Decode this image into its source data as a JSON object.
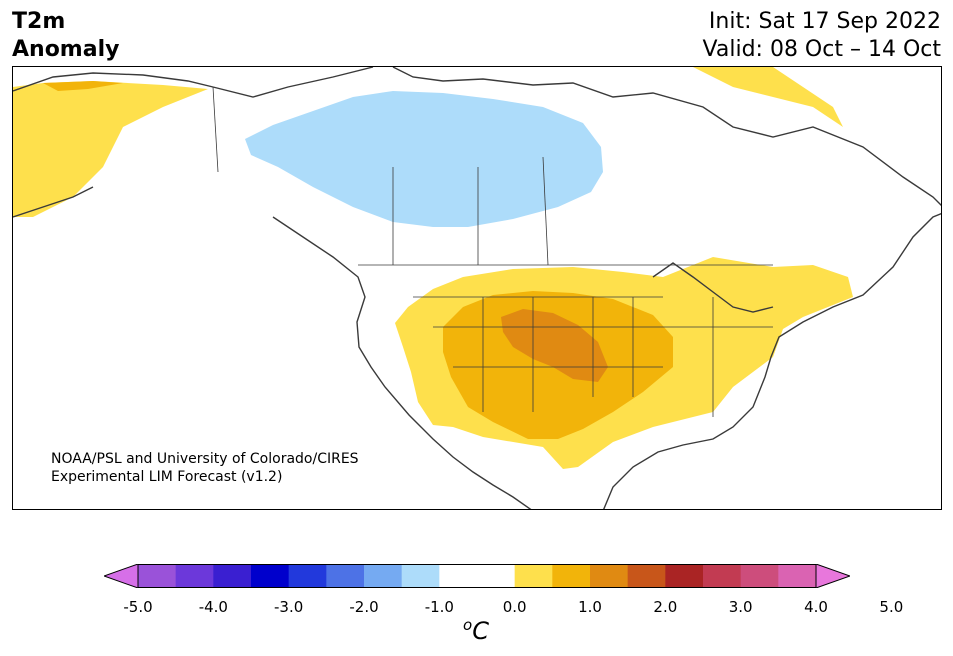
{
  "title": {
    "line1": "T2m",
    "line2": "Anomaly"
  },
  "header": {
    "init": "Init: Sat 17 Sep 2022",
    "valid": "Valid: 08 Oct – 14 Oct"
  },
  "credit": {
    "line1": "NOAA/PSL and University of Colorado/CIRES",
    "line2": "Experimental LIM Forecast (v1.2)"
  },
  "colorbar": {
    "colors": [
      "#d66fe8",
      "#9a52d9",
      "#6c38da",
      "#3a1fd1",
      "#0000cc",
      "#2239dc",
      "#4d72e6",
      "#75aaf2",
      "#addcfa",
      "#ffffff",
      "#ffffff",
      "#fee04c",
      "#f2b40a",
      "#e08a12",
      "#c8561a",
      "#aa2424",
      "#c23b52",
      "#cd4d7c",
      "#da63b2",
      "#e877dc"
    ],
    "ticks": [
      "-5.0",
      "-4.0",
      "-3.0",
      "-2.0",
      "-1.0",
      "0.0",
      "1.0",
      "2.0",
      "3.0",
      "4.0",
      "5.0"
    ],
    "unit_base": "C",
    "unit_super": "o"
  },
  "map_colors": {
    "cold_anomaly": "#addcfa",
    "warm_1": "#fee04c",
    "warm_2": "#f2b40a",
    "warm_3": "#e08a12",
    "coastline": "#3a3a3a"
  }
}
